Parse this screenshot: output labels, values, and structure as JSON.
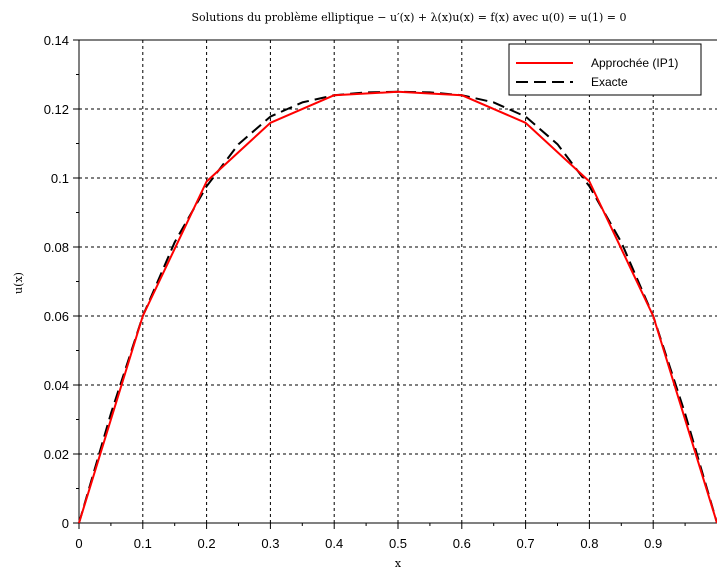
{
  "chart_data": {
    "type": "line",
    "title": "Solutions du problème elliptique  − u′(x) + λ(x)u(x) = f(x) avec u(0) = u(1) = 0",
    "xlabel": "x",
    "ylabel": "u(x)",
    "xlim": [
      0,
      1
    ],
    "ylim": [
      0,
      0.14
    ],
    "xticks": [
      0,
      0.1,
      0.2,
      0.3,
      0.4,
      0.5,
      0.6,
      0.7,
      0.8,
      0.9
    ],
    "xtick_labels": [
      "0",
      "0.1",
      "0.2",
      "0.3",
      "0.4",
      "0.5",
      "0.6",
      "0.7",
      "0.8",
      "0.9"
    ],
    "yticks": [
      0,
      0.02,
      0.04,
      0.06,
      0.08,
      0.1,
      0.12,
      0.14
    ],
    "ytick_labels": [
      "0",
      "0.02",
      "0.04",
      "0.06",
      "0.08",
      "0.1",
      "0.12",
      "0.14"
    ],
    "grid": true,
    "legend_position": "top-right",
    "series": [
      {
        "name": "Approchée (IP1)",
        "color": "#ff0000",
        "style": "solid",
        "x": [
          0,
          0.1,
          0.2,
          0.3,
          0.4,
          0.5,
          0.6,
          0.7,
          0.8,
          0.9,
          1.0
        ],
        "y": [
          0,
          0.06,
          0.099,
          0.116,
          0.124,
          0.125,
          0.124,
          0.116,
          0.099,
          0.06,
          0
        ]
      },
      {
        "name": "Exacte",
        "color": "#000000",
        "style": "dashed",
        "x": [
          0,
          0.05,
          0.1,
          0.15,
          0.2,
          0.25,
          0.3,
          0.35,
          0.4,
          0.45,
          0.5,
          0.55,
          0.6,
          0.65,
          0.7,
          0.75,
          0.8,
          0.85,
          0.9,
          0.95,
          1.0
        ],
        "y": [
          0,
          0.0317,
          0.06,
          0.0814,
          0.0976,
          0.1098,
          0.1178,
          0.1219,
          0.124,
          0.1248,
          0.125,
          0.1248,
          0.124,
          0.1219,
          0.1178,
          0.1098,
          0.0976,
          0.0814,
          0.06,
          0.0317,
          0
        ]
      }
    ]
  }
}
